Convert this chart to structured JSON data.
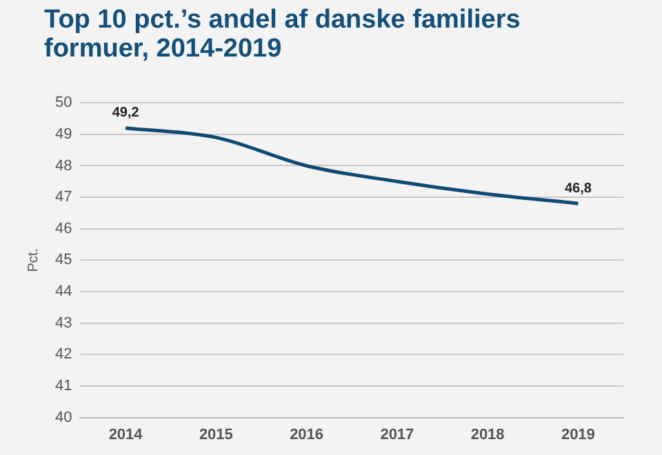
{
  "chart_data": {
    "type": "line",
    "title": "Top 10 pct.’s andel af danske familiers formuer, 2014-2019",
    "ylabel": "Pct.",
    "categories": [
      "2014",
      "2015",
      "2016",
      "2017",
      "2018",
      "2019"
    ],
    "series": [
      {
        "color": "#0e4a72",
        "values": [
          49.2,
          48.9,
          48.0,
          47.5,
          47.1,
          46.8
        ],
        "value_labels": [
          "49,2",
          null,
          null,
          null,
          null,
          "46,8"
        ]
      }
    ],
    "ylim": [
      40,
      50
    ],
    "yticks": [
      40,
      41,
      42,
      43,
      44,
      45,
      46,
      47,
      48,
      49,
      50
    ],
    "grid": "y",
    "legend": false,
    "marker": "none",
    "line_style": "solid"
  }
}
